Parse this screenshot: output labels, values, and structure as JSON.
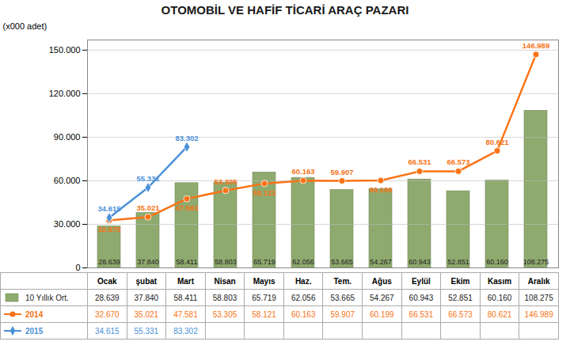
{
  "chart_data": {
    "type": "bar",
    "title": "OTOMOBİL VE HAFİF TİCARİ ARAÇ PAZARI",
    "y_label": "(x000 adet)",
    "categories": [
      "Ocak",
      "şubat",
      "Mart",
      "Nisan",
      "Mayıs",
      "Haz.",
      "Tem.",
      "Ağus",
      "Eylül",
      "Ekim",
      "Kasım",
      "Aralık"
    ],
    "series": [
      {
        "name": "10 Yıllık Ort.",
        "type": "bar",
        "color": "#8faa6e",
        "values": [
          28639,
          37840,
          58411,
          58803,
          65719,
          62056,
          53665,
          54267,
          60943,
          52851,
          60160,
          108275
        ],
        "value_labels": [
          "28.639",
          "37.840",
          "58.411",
          "58.803",
          "65.719",
          "62.056",
          "53.665",
          "54.267",
          "60.943",
          "52.851",
          "60.160",
          "108.275"
        ]
      },
      {
        "name": "2014",
        "type": "line",
        "color": "#f97316",
        "marker": "circle",
        "values": [
          32670,
          35021,
          47581,
          53305,
          58121,
          60163,
          59907,
          60199,
          66531,
          66573,
          80621,
          146989
        ],
        "value_labels": [
          "32.670",
          "35.021",
          "47.581",
          "53.305",
          "58.121",
          "60.163",
          "59.907",
          "60.199",
          "66.531",
          "66.573",
          "80.621",
          "146.989"
        ]
      },
      {
        "name": "2015",
        "type": "line",
        "color": "#4a90d9",
        "marker": "diamond",
        "values": [
          34615,
          55331,
          83302,
          null,
          null,
          null,
          null,
          null,
          null,
          null,
          null,
          null
        ],
        "value_labels": [
          "34.615",
          "55.331",
          "83.302",
          null,
          null,
          null,
          null,
          null,
          null,
          null,
          null,
          null
        ]
      }
    ],
    "ylim": [
      0,
      157000
    ],
    "yticks": [
      0,
      {
        "value": 30000,
        "label": "30.000"
      },
      {
        "value": 60000,
        "label": "60.000"
      },
      {
        "value": 90000,
        "label": "90.000"
      },
      {
        "value": 120000,
        "label": "120.000"
      },
      {
        "value": 150000,
        "label": "150.000"
      }
    ],
    "grid": true,
    "data_labels": true
  }
}
